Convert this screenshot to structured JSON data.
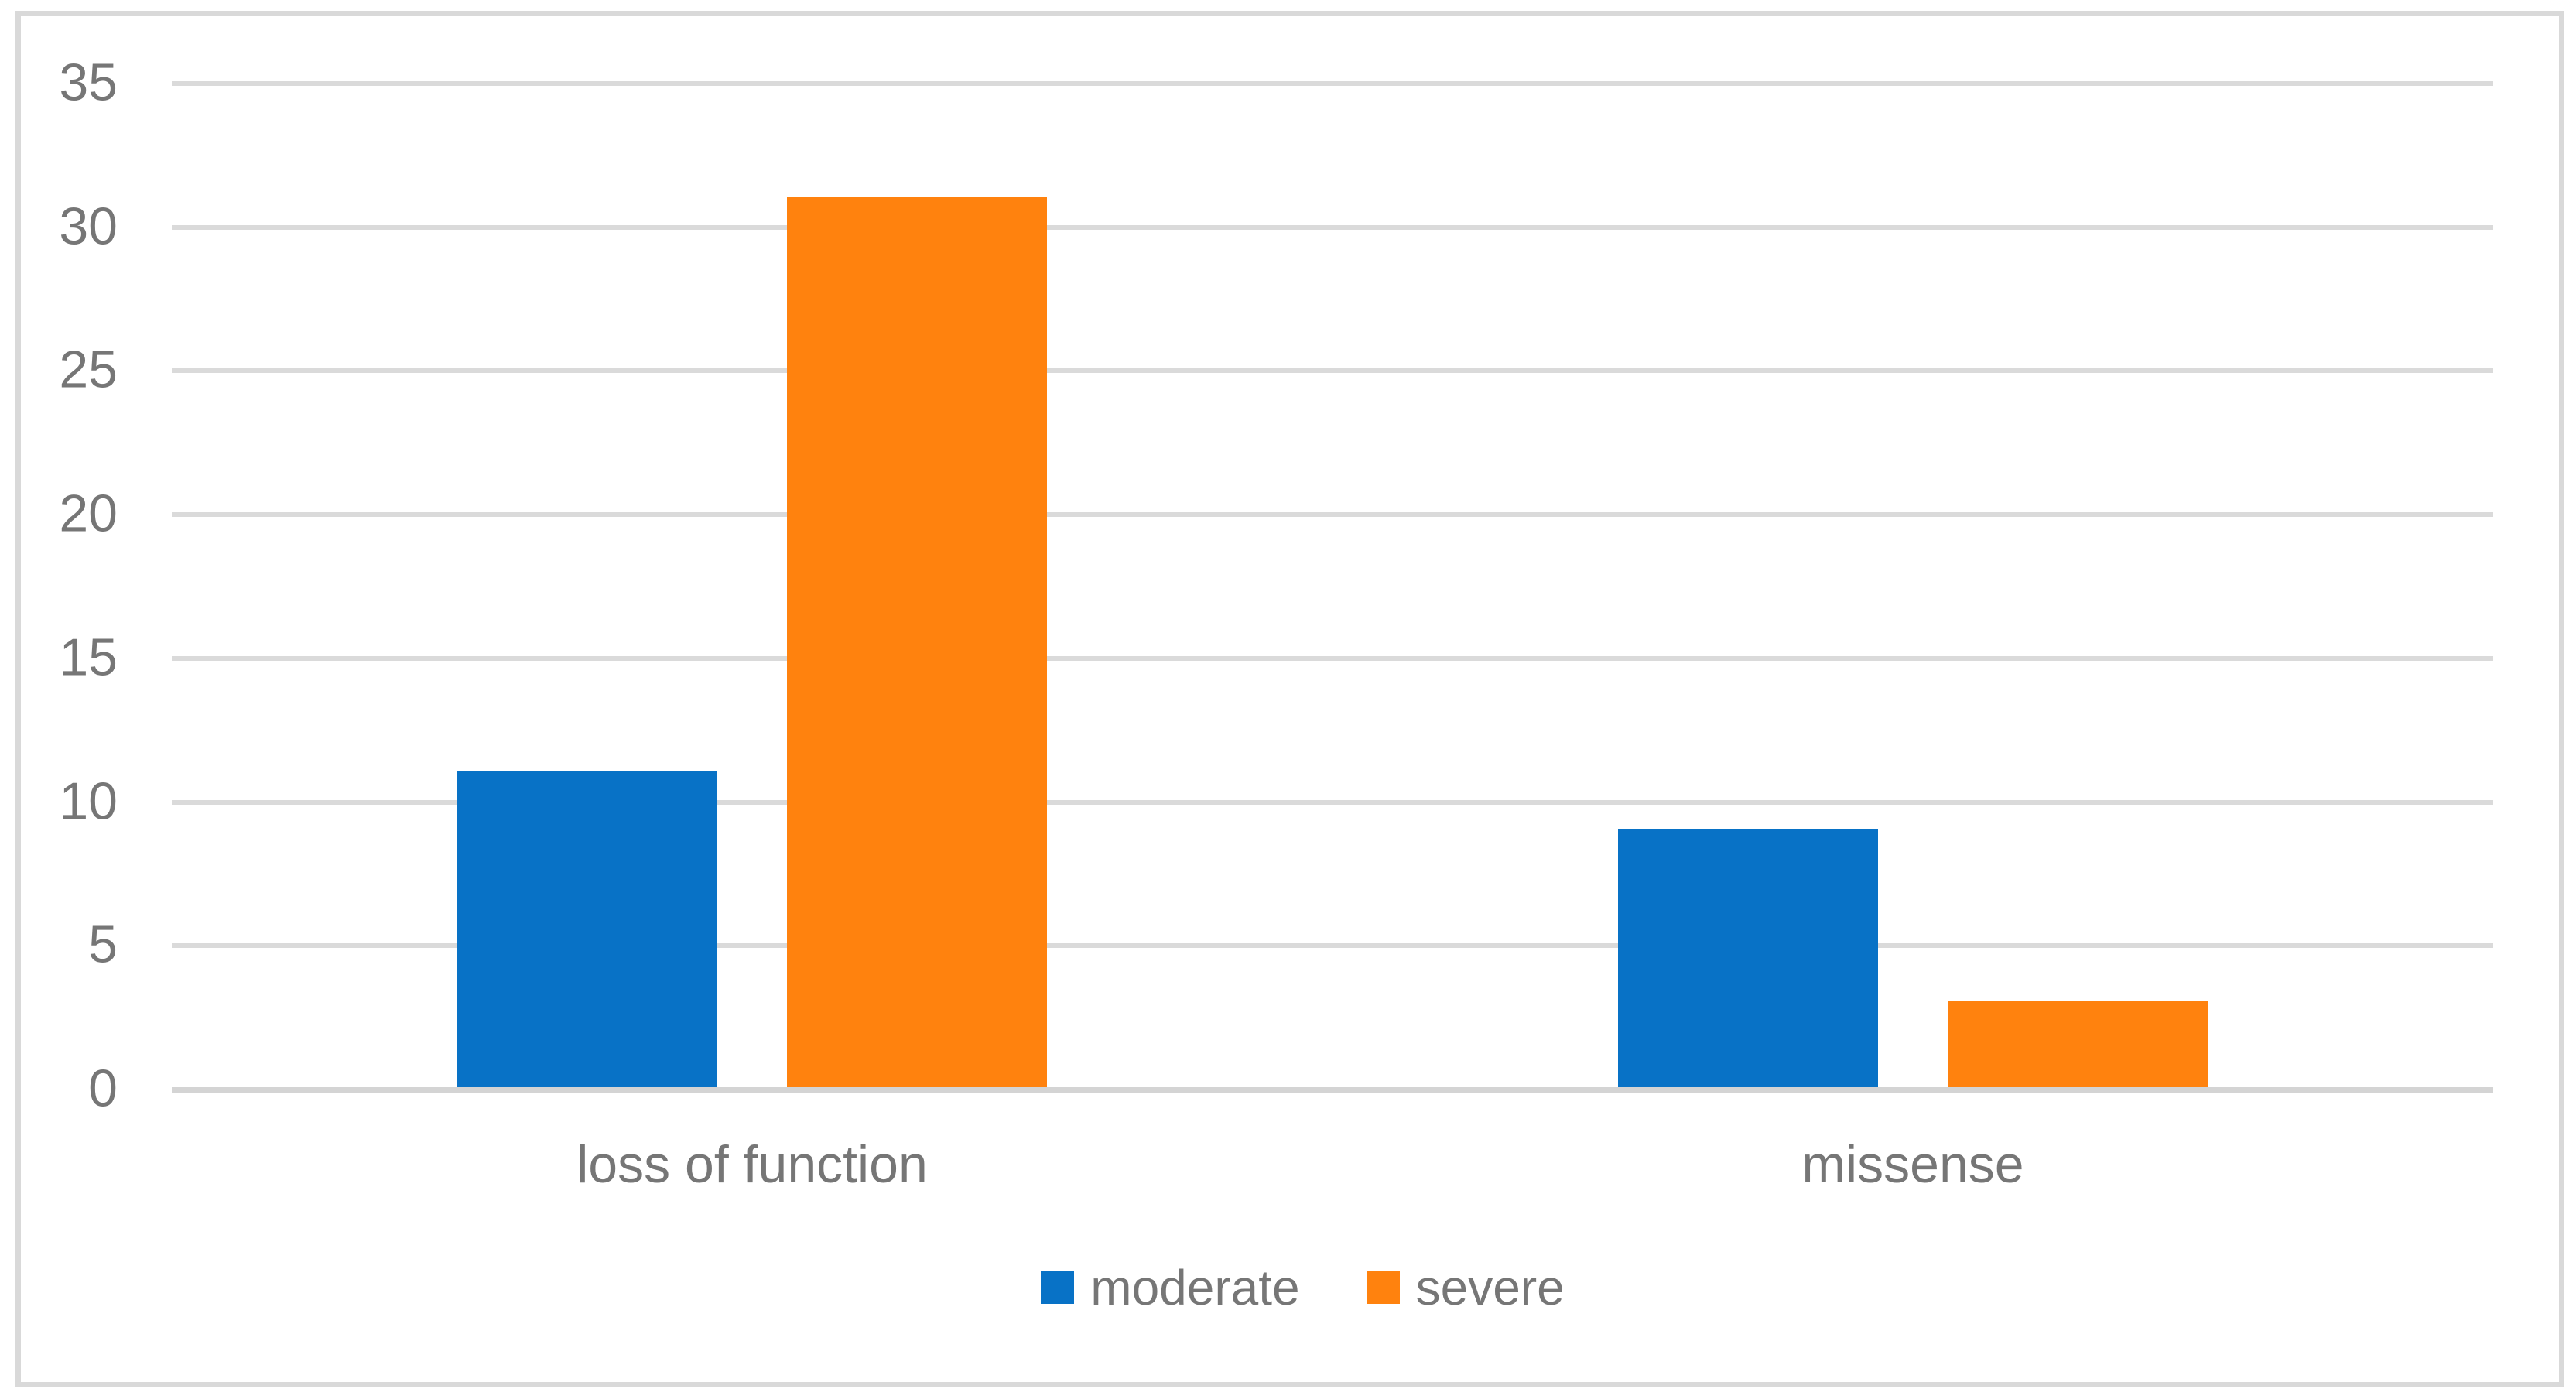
{
  "chart_data": {
    "type": "bar",
    "title": "",
    "xlabel": "",
    "ylabel": "",
    "categories": [
      "loss of function",
      "missense"
    ],
    "series": [
      {
        "name": "moderate",
        "color": "#0872C6",
        "values": [
          11,
          9
        ]
      },
      {
        "name": "severe",
        "color": "#FF820E",
        "values": [
          31,
          3
        ]
      }
    ],
    "ylim": [
      0,
      35
    ],
    "yticks": [
      0,
      5,
      10,
      15,
      20,
      25,
      30,
      35
    ],
    "grid": true,
    "legend_position": "bottom"
  },
  "colors": {
    "background": "#FFFFFF",
    "frame_border": "#D9D9D9",
    "gridline": "#DADADA",
    "axis_line": "#D4D4D4",
    "label_text": "#767676",
    "series_moderate": "#0872C6",
    "series_severe": "#FF820E"
  }
}
